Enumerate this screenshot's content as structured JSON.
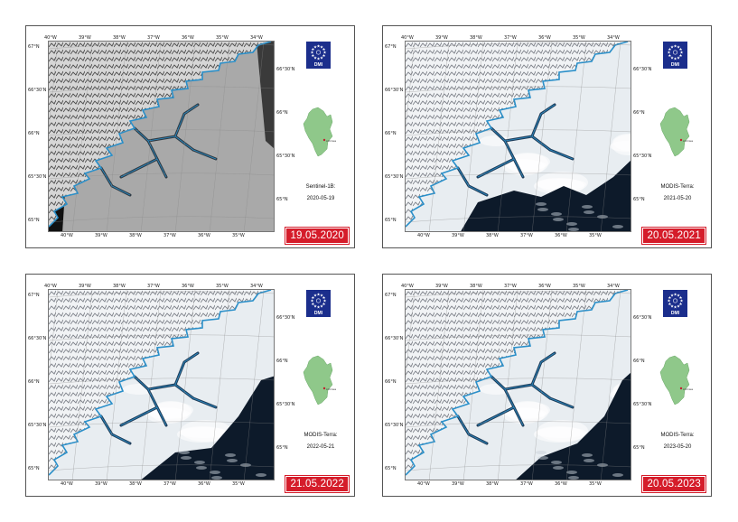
{
  "panels": [
    {
      "sensor": "Sentinel-1B:",
      "date": "2020-05-19",
      "badge": "19.05.2020",
      "style": "sar"
    },
    {
      "sensor": "MODIS-Terra:",
      "date": "2021-05-20",
      "badge": "20.05.2021",
      "style": "optical"
    },
    {
      "sensor": "MODIS-Terra:",
      "date": "2022-05-21",
      "badge": "21.05.2022",
      "style": "optical"
    },
    {
      "sensor": "MODIS-Terra:",
      "date": "2023-05-20",
      "badge": "20.05.2023",
      "style": "optical"
    }
  ],
  "graticule": {
    "top": [
      "40°W",
      "39°W",
      "38°W",
      "37°W",
      "36°W",
      "35°W",
      "34°W"
    ],
    "bottom": [
      "40°W",
      "39°W",
      "38°W",
      "37°W",
      "36°W",
      "35°W"
    ],
    "left": [
      "67°N",
      "66°30'N",
      "66°N",
      "65°30'N",
      "65°N"
    ],
    "right": [
      "66°30'N",
      "66°N",
      "65°30'N",
      "65°N"
    ]
  },
  "logo": {
    "text": "DMI"
  },
  "inset": {
    "place": "Ammassalik"
  },
  "colors": {
    "badge": "#d51c2a",
    "logo": "#1b2e8c",
    "coast": "#2a8fc9",
    "greenland": "#8fc88a",
    "ocean_dark": "#0d1a2a",
    "ice": "#e8edf1"
  }
}
